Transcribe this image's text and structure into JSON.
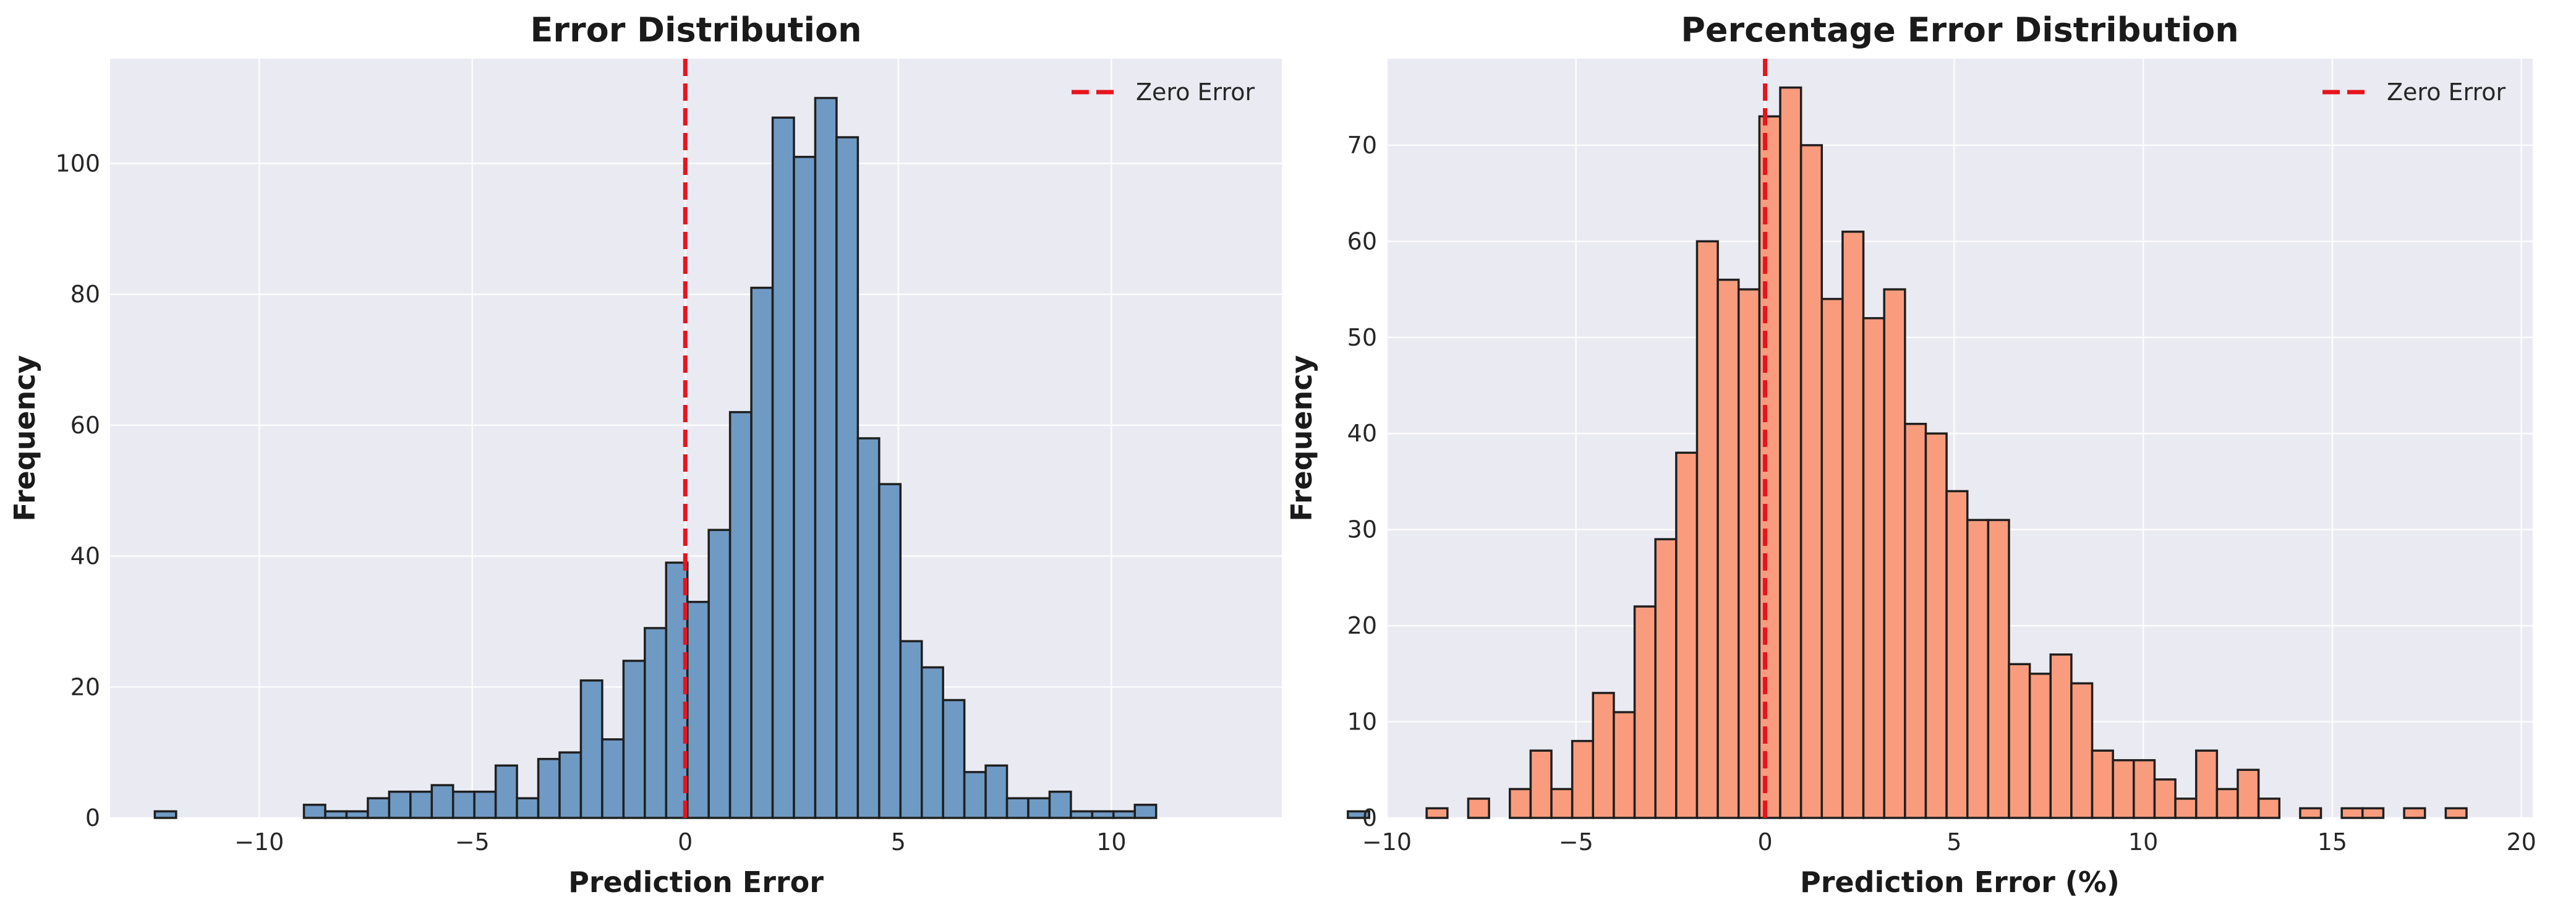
{
  "chart_data": [
    {
      "type": "bar",
      "title": "Error Distribution",
      "xlabel": "Prediction Error",
      "ylabel": "Frequency",
      "xlim": [
        -13.5,
        14.0
      ],
      "ylim": [
        0,
        116
      ],
      "xticks": [
        -10,
        -5,
        0,
        5,
        10
      ],
      "yticks": [
        0,
        20,
        40,
        60,
        80,
        100
      ],
      "bin_start": -12.45,
      "bin_width": 0.5,
      "counts": [
        1,
        0,
        0,
        0,
        0,
        0,
        0,
        2,
        1,
        1,
        3,
        4,
        4,
        5,
        4,
        4,
        8,
        3,
        9,
        10,
        21,
        12,
        24,
        29,
        39,
        33,
        44,
        62,
        81,
        107,
        101,
        110,
        104,
        58,
        51,
        27,
        23,
        18,
        7,
        8,
        3,
        3,
        4,
        1,
        1,
        1,
        2,
        0,
        0,
        0,
        0,
        0,
        0,
        0,
        0,
        0,
        1
      ],
      "bar_color": "#6f9ac4",
      "reference_line": {
        "x": 0,
        "label": "Zero Error",
        "color": "#e8141c"
      },
      "legend": {
        "position": "top-right",
        "entries": [
          "Zero Error"
        ]
      },
      "grid": true
    },
    {
      "type": "bar",
      "title": "Percentage Error Distribution",
      "xlabel": "Prediction Error (%)",
      "ylabel": "Frequency",
      "xlim": [
        -10.0,
        20.3
      ],
      "ylim": [
        0,
        79
      ],
      "xticks": [
        -10,
        -5,
        0,
        5,
        10,
        15,
        20
      ],
      "yticks": [
        0,
        10,
        20,
        30,
        40,
        50,
        60,
        70
      ],
      "bin_start": -8.95,
      "bin_width": 0.55,
      "counts": [
        1,
        0,
        2,
        0,
        3,
        7,
        3,
        8,
        13,
        11,
        22,
        29,
        38,
        60,
        56,
        55,
        73,
        76,
        70,
        54,
        61,
        52,
        55,
        41,
        40,
        34,
        31,
        31,
        16,
        15,
        17,
        14,
        7,
        6,
        6,
        4,
        2,
        7,
        3,
        5,
        2,
        0,
        1,
        0,
        1,
        1,
        0,
        1,
        0,
        1
      ],
      "bar_color": "#f99c7e",
      "reference_line": {
        "x": 0,
        "label": "Zero Error",
        "color": "#e8141c"
      },
      "legend": {
        "position": "top-right",
        "entries": [
          "Zero Error"
        ]
      },
      "grid": true
    }
  ]
}
